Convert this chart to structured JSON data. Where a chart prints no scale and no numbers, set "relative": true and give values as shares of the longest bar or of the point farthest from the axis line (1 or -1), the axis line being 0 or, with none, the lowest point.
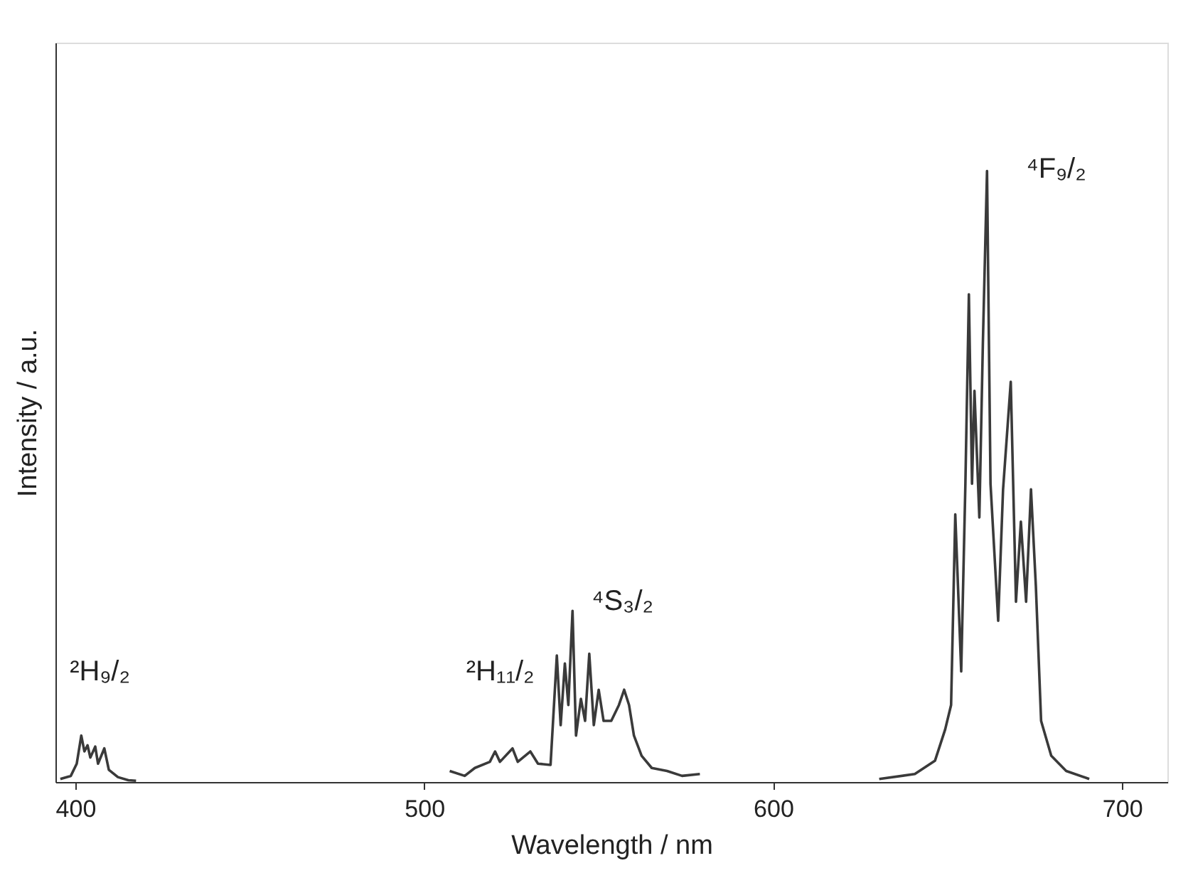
{
  "chart_data": {
    "type": "line",
    "xlabel": "Wavelength / nm",
    "ylabel": "Intensity / a.u.",
    "relative": true,
    "xlim": [
      394.3,
      713
    ],
    "xticks": [
      400,
      500,
      600,
      700
    ],
    "series": [
      {
        "color": "#3a3a3a",
        "x": [
          395.7,
          398.7,
          400.4,
          401.7,
          402.6,
          403.5,
          404.3,
          405.7,
          406.5,
          408.3,
          409.6,
          412.2,
          415.2,
          417.4,
          460,
          507.3,
          511.6,
          514.5,
          518.8,
          520.3,
          521.7,
          525.3,
          526.8,
          530.4,
          532.6,
          536.2,
          538.0,
          539.1,
          540.3,
          541.3,
          542.5,
          543.5,
          544.9,
          546.1,
          547.3,
          548.6,
          550.0,
          551.4,
          553.6,
          555.8,
          557.3,
          558.7,
          560.1,
          562.3,
          565.2,
          569.6,
          573.9,
          579.0,
          600,
          630.4,
          640.6,
          646.4,
          649.3,
          651.0,
          652.2,
          653.9,
          655.1,
          656.1,
          657.0,
          657.7,
          659.1,
          660.1,
          661.3,
          662.3,
          664.5,
          665.9,
          668.1,
          669.6,
          671.0,
          672.5,
          673.9,
          675.3,
          676.8,
          679.7,
          684.0,
          690.6
        ],
        "values": [
          0.005,
          0.01,
          0.03,
          0.076,
          0.05,
          0.06,
          0.04,
          0.058,
          0.03,
          0.055,
          0.02,
          0.008,
          0.003,
          0.002,
          null,
          0.018,
          0.01,
          0.023,
          0.033,
          0.05,
          0.033,
          0.055,
          0.033,
          0.05,
          0.03,
          0.028,
          0.207,
          0.093,
          0.194,
          0.126,
          0.28,
          0.076,
          0.136,
          0.1,
          0.21,
          0.093,
          0.151,
          0.1,
          0.1,
          0.126,
          0.151,
          0.126,
          0.076,
          0.043,
          0.023,
          0.018,
          0.01,
          0.013,
          null,
          0.005,
          0.013,
          0.035,
          0.086,
          0.126,
          0.438,
          0.181,
          0.488,
          0.798,
          0.488,
          0.64,
          0.433,
          0.715,
          1.0,
          0.488,
          0.264,
          0.479,
          0.655,
          0.295,
          0.426,
          0.295,
          0.479,
          0.32,
          0.1,
          0.043,
          0.018,
          0.005
        ]
      }
    ],
    "annotations": [
      "²H₉/₂",
      "²H₁₁/₂",
      "⁴S₃/₂",
      "⁴F₉/₂"
    ]
  }
}
